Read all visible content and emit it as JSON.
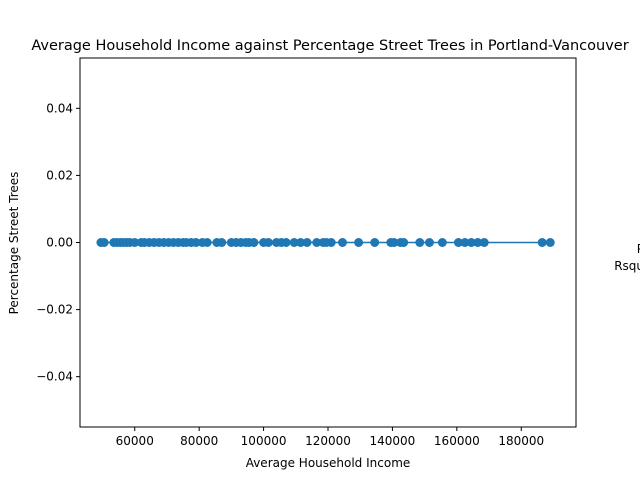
{
  "chart_data": {
    "type": "scatter",
    "title": "Average Household Income against Percentage Street Trees in Portland-Vancouver",
    "xlabel": "Average Household Income",
    "ylabel": "Percentage Street Trees",
    "xlim": [
      43000,
      197000
    ],
    "ylim": [
      -0.055,
      0.055
    ],
    "x_ticks": [
      60000,
      80000,
      100000,
      120000,
      140000,
      160000,
      180000
    ],
    "y_ticks": [
      -0.04,
      -0.02,
      0.0,
      0.02,
      0.04
    ],
    "x_tick_labels": [
      "60000",
      "80000",
      "100000",
      "120000",
      "140000",
      "160000",
      "180000"
    ],
    "y_tick_labels": [
      "−0.04",
      "−0.02",
      "0.00",
      "0.02",
      "0.04"
    ],
    "grid": false,
    "color": "#1f77b4",
    "points": [
      {
        "x": 49500,
        "y": 0
      },
      {
        "x": 50500,
        "y": 0
      },
      {
        "x": 53500,
        "y": 0
      },
      {
        "x": 54500,
        "y": 0
      },
      {
        "x": 55500,
        "y": 0
      },
      {
        "x": 56500,
        "y": 0
      },
      {
        "x": 57500,
        "y": 0
      },
      {
        "x": 58500,
        "y": 0
      },
      {
        "x": 60000,
        "y": 0
      },
      {
        "x": 62000,
        "y": 0
      },
      {
        "x": 63000,
        "y": 0
      },
      {
        "x": 64500,
        "y": 0
      },
      {
        "x": 66000,
        "y": 0
      },
      {
        "x": 67500,
        "y": 0
      },
      {
        "x": 69000,
        "y": 0
      },
      {
        "x": 70500,
        "y": 0
      },
      {
        "x": 72000,
        "y": 0
      },
      {
        "x": 73500,
        "y": 0
      },
      {
        "x": 75000,
        "y": 0
      },
      {
        "x": 76000,
        "y": 0
      },
      {
        "x": 77500,
        "y": 0
      },
      {
        "x": 79000,
        "y": 0
      },
      {
        "x": 81000,
        "y": 0
      },
      {
        "x": 82500,
        "y": 0
      },
      {
        "x": 85500,
        "y": 0
      },
      {
        "x": 87000,
        "y": 0
      },
      {
        "x": 90000,
        "y": 0
      },
      {
        "x": 91500,
        "y": 0
      },
      {
        "x": 93000,
        "y": 0
      },
      {
        "x": 94500,
        "y": 0
      },
      {
        "x": 95500,
        "y": 0
      },
      {
        "x": 97000,
        "y": 0
      },
      {
        "x": 100000,
        "y": 0
      },
      {
        "x": 101500,
        "y": 0
      },
      {
        "x": 104000,
        "y": 0
      },
      {
        "x": 105500,
        "y": 0
      },
      {
        "x": 107000,
        "y": 0
      },
      {
        "x": 109500,
        "y": 0
      },
      {
        "x": 111500,
        "y": 0
      },
      {
        "x": 113500,
        "y": 0
      },
      {
        "x": 116500,
        "y": 0
      },
      {
        "x": 118500,
        "y": 0
      },
      {
        "x": 119500,
        "y": 0
      },
      {
        "x": 121000,
        "y": 0
      },
      {
        "x": 124500,
        "y": 0
      },
      {
        "x": 129500,
        "y": 0
      },
      {
        "x": 134500,
        "y": 0
      },
      {
        "x": 139500,
        "y": 0
      },
      {
        "x": 140500,
        "y": 0
      },
      {
        "x": 142500,
        "y": 0
      },
      {
        "x": 143500,
        "y": 0
      },
      {
        "x": 148500,
        "y": 0
      },
      {
        "x": 151500,
        "y": 0
      },
      {
        "x": 155500,
        "y": 0
      },
      {
        "x": 160500,
        "y": 0
      },
      {
        "x": 162500,
        "y": 0
      },
      {
        "x": 164500,
        "y": 0
      },
      {
        "x": 166500,
        "y": 0
      },
      {
        "x": 168500,
        "y": 0
      },
      {
        "x": 186500,
        "y": 0
      },
      {
        "x": 189000,
        "y": 0
      }
    ],
    "fit_line": {
      "x": [
        49500,
        189000
      ],
      "y": [
        0,
        0
      ]
    },
    "side_text": [
      "P",
      "Rsqu"
    ]
  }
}
